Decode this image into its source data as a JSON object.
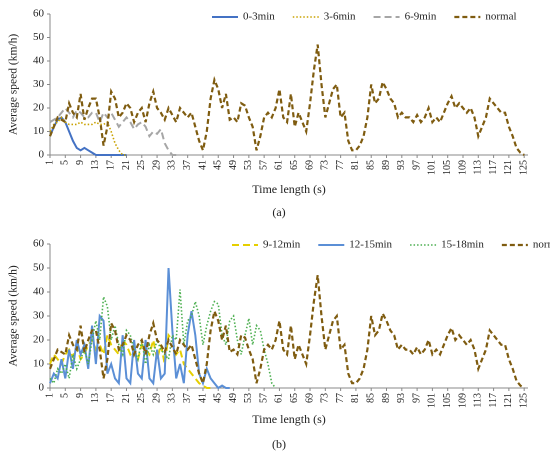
{
  "chart_data": [
    {
      "type": "line",
      "caption": "(a)",
      "x_label": "Time length (s)",
      "y_label": "Average speed (km/h)",
      "ylim": [
        0,
        60
      ],
      "yticks": [
        0,
        10,
        20,
        30,
        40,
        50,
        60
      ],
      "xlim": [
        1,
        126
      ],
      "xticks": [
        1,
        5,
        9,
        13,
        17,
        21,
        25,
        29,
        33,
        37,
        41,
        45,
        49,
        53,
        57,
        61,
        65,
        69,
        73,
        77,
        81,
        85,
        89,
        93,
        97,
        101,
        105,
        109,
        113,
        117,
        121,
        125
      ],
      "legend": "top-right",
      "series": [
        {
          "name": "0-3min",
          "color": "#4472c4",
          "dash": "solid",
          "x": [
            1,
            2,
            3,
            4,
            5,
            6,
            7,
            8,
            9,
            10,
            11,
            12,
            13,
            14,
            15,
            16,
            17,
            18,
            19,
            20,
            21
          ],
          "values": [
            8,
            12,
            15,
            16,
            14,
            10,
            6,
            3,
            2,
            3,
            2,
            1,
            0,
            0,
            0,
            0,
            0,
            0,
            0,
            0,
            0
          ]
        },
        {
          "name": "3-6min",
          "color": "#c9a200",
          "dash": "dotted",
          "x": [
            1,
            2,
            3,
            4,
            5,
            6,
            7,
            8,
            9,
            10,
            11,
            12,
            13,
            14,
            15,
            16,
            17,
            18,
            19,
            20,
            21
          ],
          "values": [
            10,
            13,
            14,
            16,
            14,
            13,
            13,
            13,
            14,
            13,
            13,
            13,
            14,
            13,
            13,
            14,
            10,
            5,
            2,
            0,
            0
          ]
        },
        {
          "name": "6-9min",
          "color": "#a6a6a6",
          "dash": "dashed",
          "x": [
            1,
            2,
            3,
            4,
            5,
            6,
            7,
            8,
            9,
            10,
            11,
            12,
            13,
            14,
            15,
            16,
            17,
            18,
            19,
            20,
            21,
            22,
            23,
            24,
            25,
            26,
            27,
            28,
            29,
            30,
            31,
            32,
            33,
            34
          ],
          "values": [
            14,
            15,
            16,
            18,
            20,
            18,
            16,
            19,
            18,
            16,
            16,
            18,
            18,
            14,
            18,
            16,
            18,
            15,
            12,
            14,
            16,
            14,
            11,
            13,
            14,
            12,
            8,
            10,
            9,
            11,
            5,
            2,
            0,
            0
          ]
        },
        {
          "name": "normal",
          "color": "#7f5c10",
          "dash": "bold",
          "x": [
            1,
            2,
            3,
            4,
            5,
            6,
            7,
            8,
            9,
            10,
            11,
            12,
            13,
            14,
            15,
            16,
            17,
            18,
            19,
            20,
            21,
            22,
            23,
            24,
            25,
            26,
            27,
            28,
            29,
            30,
            31,
            32,
            33,
            34,
            35,
            36,
            37,
            38,
            39,
            40,
            41,
            42,
            43,
            44,
            45,
            46,
            47,
            48,
            49,
            50,
            51,
            52,
            53,
            54,
            55,
            56,
            57,
            58,
            59,
            60,
            61,
            62,
            63,
            64,
            65,
            66,
            67,
            68,
            69,
            70,
            71,
            72,
            73,
            74,
            75,
            76,
            77,
            78,
            79,
            80,
            81,
            82,
            83,
            84,
            85,
            86,
            87,
            88,
            89,
            90,
            91,
            92,
            93,
            94,
            95,
            96,
            97,
            98,
            99,
            100,
            101,
            102,
            103,
            104,
            105,
            106,
            107,
            108,
            109,
            110,
            111,
            112,
            113,
            114,
            115,
            116,
            117,
            118,
            119,
            120,
            121,
            122,
            123,
            124,
            125
          ],
          "values": [
            8,
            12,
            16,
            15,
            14,
            22,
            18,
            16,
            26,
            15,
            20,
            24,
            24,
            16,
            4,
            12,
            27,
            24,
            16,
            18,
            22,
            20,
            14,
            18,
            20,
            14,
            22,
            27,
            20,
            18,
            15,
            20,
            17,
            14,
            20,
            18,
            16,
            18,
            12,
            6,
            2,
            10,
            24,
            32,
            28,
            20,
            26,
            15,
            16,
            14,
            22,
            21,
            16,
            12,
            2,
            8,
            16,
            18,
            16,
            20,
            28,
            16,
            14,
            26,
            12,
            18,
            14,
            10,
            22,
            36,
            47,
            30,
            16,
            22,
            28,
            30,
            16,
            18,
            6,
            2,
            2,
            4,
            8,
            16,
            30,
            22,
            24,
            31,
            28,
            24,
            22,
            16,
            18,
            16,
            16,
            14,
            17,
            14,
            16,
            20,
            14,
            16,
            14,
            18,
            22,
            25,
            20,
            22,
            20,
            18,
            20,
            16,
            8,
            12,
            16,
            24,
            22,
            20,
            18,
            18,
            12,
            8,
            3,
            1,
            0
          ]
        }
      ]
    },
    {
      "type": "line",
      "caption": "(b)",
      "x_label": "Time length (s)",
      "y_label": "Average speed (km/h)",
      "ylim": [
        0,
        60
      ],
      "yticks": [
        0,
        10,
        20,
        30,
        40,
        50,
        60
      ],
      "xlim": [
        1,
        126
      ],
      "xticks": [
        1,
        5,
        9,
        13,
        17,
        21,
        25,
        29,
        33,
        37,
        41,
        45,
        49,
        53,
        57,
        61,
        65,
        69,
        73,
        77,
        81,
        85,
        89,
        93,
        97,
        101,
        105,
        109,
        113,
        117,
        121,
        125
      ],
      "legend": "top",
      "series": [
        {
          "name": "9-12min",
          "color": "#e6cf00",
          "dash": "dashed",
          "x": [
            1,
            2,
            3,
            4,
            5,
            6,
            7,
            8,
            9,
            10,
            11,
            12,
            13,
            14,
            15,
            16,
            17,
            18,
            19,
            20,
            21,
            22,
            23,
            24,
            25,
            26,
            27,
            28,
            29,
            30,
            31,
            32,
            33,
            34,
            35,
            36,
            37,
            38,
            39,
            40,
            41,
            42,
            43
          ],
          "values": [
            10,
            14,
            12,
            10,
            14,
            16,
            13,
            17,
            12,
            14,
            18,
            20,
            16,
            18,
            14,
            22,
            18,
            16,
            14,
            20,
            18,
            14,
            16,
            12,
            18,
            16,
            14,
            20,
            12,
            18,
            10,
            22,
            20,
            14,
            16,
            10,
            8,
            6,
            4,
            2,
            1,
            0,
            0
          ]
        },
        {
          "name": "12-15min",
          "color": "#5b8fd6",
          "dash": "solid",
          "x": [
            1,
            2,
            3,
            4,
            5,
            6,
            7,
            8,
            9,
            10,
            11,
            12,
            13,
            14,
            15,
            16,
            17,
            18,
            19,
            20,
            21,
            22,
            23,
            24,
            25,
            26,
            27,
            28,
            29,
            30,
            31,
            32,
            33,
            34,
            35,
            36,
            37,
            38,
            39,
            40,
            41,
            42,
            43,
            44,
            45,
            46,
            47,
            48
          ],
          "values": [
            2,
            6,
            4,
            12,
            4,
            16,
            8,
            20,
            14,
            18,
            8,
            26,
            10,
            30,
            28,
            6,
            10,
            4,
            2,
            22,
            4,
            2,
            20,
            6,
            4,
            20,
            4,
            2,
            16,
            4,
            6,
            50,
            24,
            4,
            10,
            2,
            22,
            32,
            22,
            6,
            2,
            8,
            4,
            2,
            0,
            1,
            0,
            0
          ]
        },
        {
          "name": "15-18min",
          "color": "#4caf50",
          "dash": "dotted",
          "x": [
            1,
            2,
            3,
            4,
            5,
            6,
            7,
            8,
            9,
            10,
            11,
            12,
            13,
            14,
            15,
            16,
            17,
            18,
            19,
            20,
            21,
            22,
            23,
            24,
            25,
            26,
            27,
            28,
            29,
            30,
            31,
            32,
            33,
            34,
            35,
            36,
            37,
            38,
            39,
            40,
            41,
            42,
            43,
            44,
            45,
            46,
            47,
            48,
            49,
            50,
            51,
            52,
            53,
            54,
            55,
            56,
            57,
            58,
            59,
            60
          ],
          "values": [
            4,
            2,
            8,
            6,
            10,
            4,
            14,
            8,
            12,
            16,
            10,
            20,
            28,
            20,
            38,
            34,
            20,
            26,
            18,
            14,
            24,
            22,
            16,
            12,
            20,
            10,
            18,
            14,
            20,
            16,
            14,
            12,
            22,
            20,
            41,
            18,
            28,
            30,
            36,
            30,
            18,
            26,
            32,
            36,
            35,
            22,
            18,
            28,
            30,
            20,
            14,
            22,
            29,
            18,
            26,
            24,
            16,
            10,
            2,
            0
          ]
        },
        {
          "name": "normal",
          "color": "#7f5c10",
          "dash": "bold",
          "x": [
            1,
            2,
            3,
            4,
            5,
            6,
            7,
            8,
            9,
            10,
            11,
            12,
            13,
            14,
            15,
            16,
            17,
            18,
            19,
            20,
            21,
            22,
            23,
            24,
            25,
            26,
            27,
            28,
            29,
            30,
            31,
            32,
            33,
            34,
            35,
            36,
            37,
            38,
            39,
            40,
            41,
            42,
            43,
            44,
            45,
            46,
            47,
            48,
            49,
            50,
            51,
            52,
            53,
            54,
            55,
            56,
            57,
            58,
            59,
            60,
            61,
            62,
            63,
            64,
            65,
            66,
            67,
            68,
            69,
            70,
            71,
            72,
            73,
            74,
            75,
            76,
            77,
            78,
            79,
            80,
            81,
            82,
            83,
            84,
            85,
            86,
            87,
            88,
            89,
            90,
            91,
            92,
            93,
            94,
            95,
            96,
            97,
            98,
            99,
            100,
            101,
            102,
            103,
            104,
            105,
            106,
            107,
            108,
            109,
            110,
            111,
            112,
            113,
            114,
            115,
            116,
            117,
            118,
            119,
            120,
            121,
            122,
            123,
            124,
            125
          ],
          "values": [
            8,
            12,
            16,
            15,
            14,
            22,
            18,
            16,
            26,
            15,
            20,
            24,
            24,
            16,
            4,
            12,
            27,
            24,
            16,
            18,
            22,
            20,
            14,
            18,
            20,
            14,
            22,
            27,
            20,
            18,
            15,
            20,
            17,
            14,
            20,
            18,
            16,
            18,
            12,
            6,
            2,
            10,
            24,
            32,
            28,
            20,
            26,
            15,
            16,
            14,
            22,
            21,
            16,
            12,
            2,
            8,
            16,
            18,
            16,
            20,
            28,
            16,
            14,
            26,
            12,
            18,
            14,
            10,
            22,
            36,
            47,
            30,
            16,
            22,
            28,
            30,
            16,
            18,
            6,
            2,
            2,
            4,
            8,
            16,
            30,
            22,
            24,
            31,
            28,
            24,
            22,
            16,
            18,
            16,
            16,
            14,
            17,
            14,
            16,
            20,
            14,
            16,
            14,
            18,
            22,
            25,
            20,
            22,
            20,
            18,
            20,
            16,
            8,
            12,
            16,
            24,
            22,
            20,
            18,
            18,
            12,
            8,
            3,
            1,
            0
          ]
        }
      ]
    }
  ]
}
